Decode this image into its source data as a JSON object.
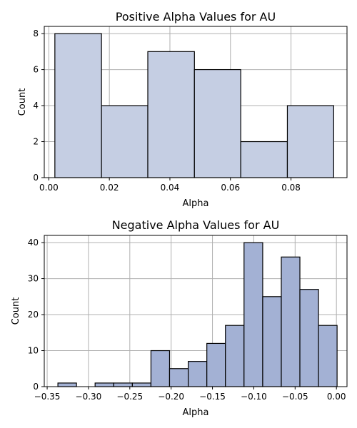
{
  "chart_data": [
    {
      "type": "bar",
      "title": "Positive Alpha Values for AU",
      "xlabel": "Alpha",
      "ylabel": "Count",
      "xlim": [
        -0.0015,
        0.0985
      ],
      "ylim": [
        0,
        8.4
      ],
      "xticks": [
        0.0,
        0.02,
        0.04,
        0.06,
        0.08
      ],
      "xtick_labels": [
        "0.00",
        "0.02",
        "0.04",
        "0.06",
        "0.08"
      ],
      "yticks": [
        0,
        2,
        4,
        6,
        8
      ],
      "ytick_labels": [
        "0",
        "2",
        "4",
        "6",
        "8"
      ],
      "bins": [
        {
          "start": 0.002,
          "end": 0.0174,
          "value": 8
        },
        {
          "start": 0.0174,
          "end": 0.0327,
          "value": 4
        },
        {
          "start": 0.0327,
          "end": 0.0481,
          "value": 7
        },
        {
          "start": 0.0481,
          "end": 0.0634,
          "value": 6
        },
        {
          "start": 0.0634,
          "end": 0.0788,
          "value": 2
        },
        {
          "start": 0.0788,
          "end": 0.0941,
          "value": 4
        }
      ],
      "grid": true,
      "bar_fill": "#c5cee3",
      "bar_stroke": "#000000"
    },
    {
      "type": "bar",
      "title": "Negative Alpha Values for AU",
      "xlabel": "Alpha",
      "ylabel": "Count",
      "xlim": [
        -0.3535,
        0.0128
      ],
      "ylim": [
        0,
        42
      ],
      "xticks": [
        -0.35,
        -0.3,
        -0.25,
        -0.2,
        -0.15,
        -0.1,
        -0.05,
        0.0
      ],
      "xtick_labels": [
        "−0.35",
        "−0.30",
        "−0.25",
        "−0.20",
        "−0.15",
        "−0.10",
        "−0.05",
        "0.00"
      ],
      "yticks": [
        0,
        10,
        20,
        30,
        40
      ],
      "ytick_labels": [
        "0",
        "10",
        "20",
        "30",
        "40"
      ],
      "bins": [
        {
          "start": -0.337,
          "end": -0.3145,
          "value": 1
        },
        {
          "start": -0.3145,
          "end": -0.292,
          "value": 0
        },
        {
          "start": -0.292,
          "end": -0.2694,
          "value": 1
        },
        {
          "start": -0.2694,
          "end": -0.2469,
          "value": 1
        },
        {
          "start": -0.2469,
          "end": -0.2244,
          "value": 1
        },
        {
          "start": -0.2244,
          "end": -0.2019,
          "value": 10
        },
        {
          "start": -0.2019,
          "end": -0.1793,
          "value": 5
        },
        {
          "start": -0.1793,
          "end": -0.1568,
          "value": 7
        },
        {
          "start": -0.1568,
          "end": -0.1343,
          "value": 12
        },
        {
          "start": -0.1343,
          "end": -0.1118,
          "value": 17
        },
        {
          "start": -0.1118,
          "end": -0.0892,
          "value": 40
        },
        {
          "start": -0.0892,
          "end": -0.0667,
          "value": 25
        },
        {
          "start": -0.0667,
          "end": -0.0442,
          "value": 36
        },
        {
          "start": -0.0442,
          "end": -0.0217,
          "value": 27
        },
        {
          "start": -0.0217,
          "end": 0.0008,
          "value": 17
        }
      ],
      "grid": true,
      "bar_fill": "#a3b1d4",
      "bar_stroke": "#000000"
    }
  ]
}
